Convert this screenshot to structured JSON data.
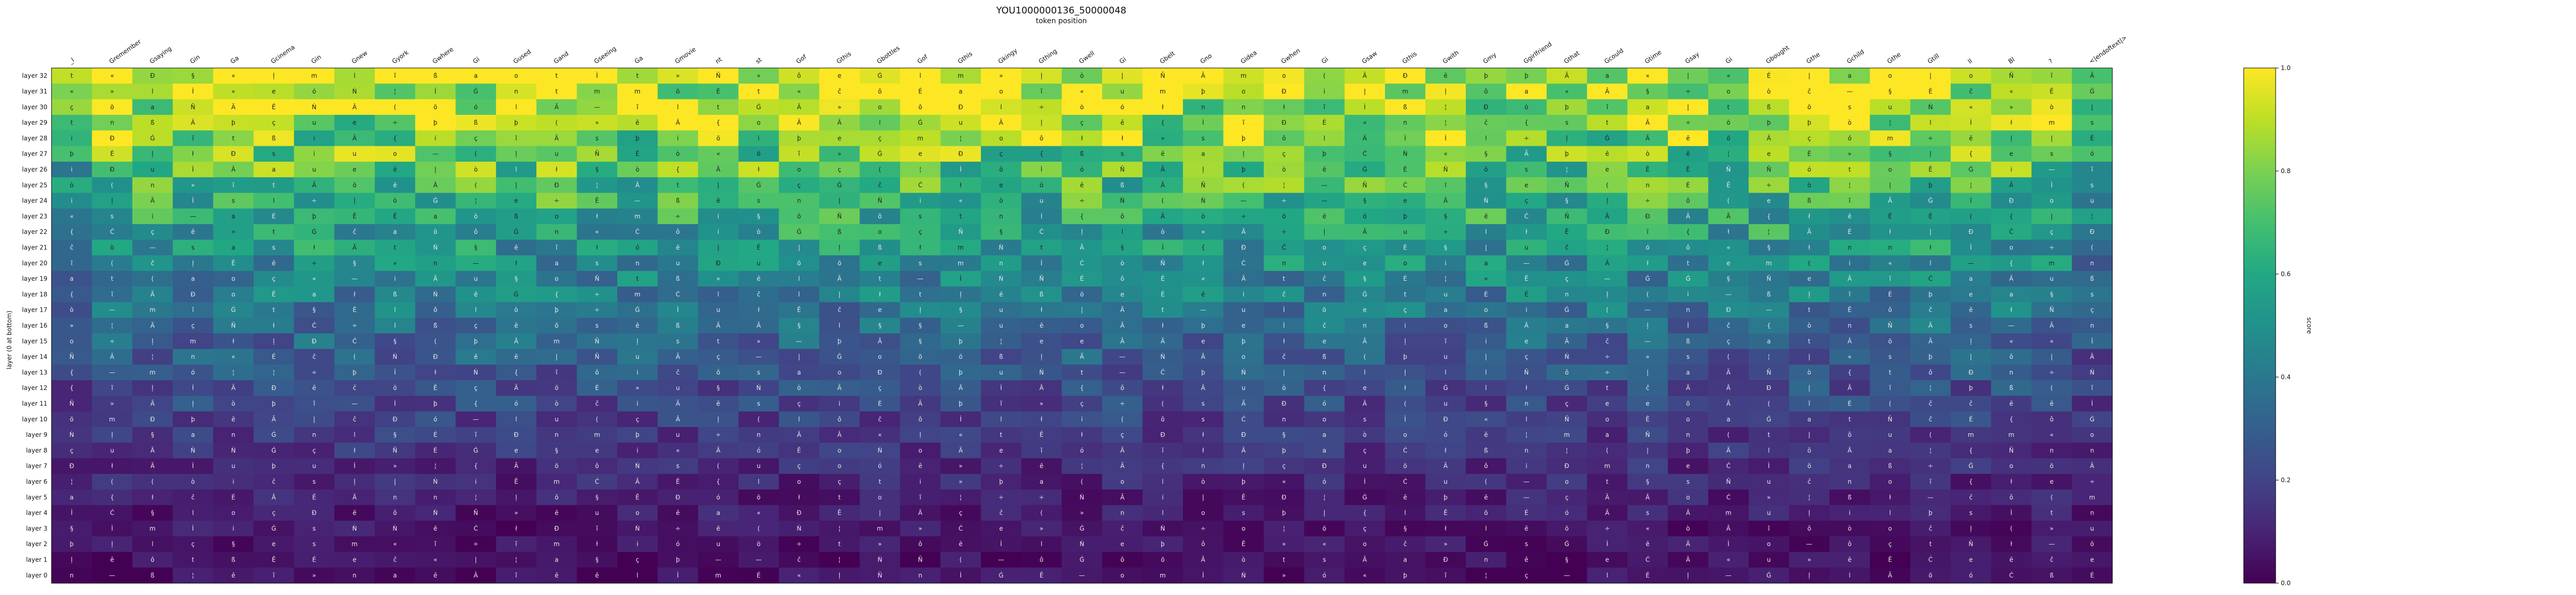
{
  "chart_data": {
    "type": "heatmap",
    "title": "YOU1000000136_50000048",
    "xlabel": "token position",
    "ylabel": "layer (0 at bottom)",
    "colorbar_label": "score",
    "colormap": "viridis",
    "color_range": [
      0.0,
      1.0
    ],
    "colorbar_ticks": [
      "0.0",
      "0.2",
      "0.4",
      "0.6",
      "0.8",
      "1.0"
    ],
    "x_tokens": [
      "_l",
      "Gremember",
      "Gsaying",
      "Gin",
      "Ga",
      "Gcinema",
      "Gin",
      "Gnew",
      "Gyork",
      "Gwhere",
      "Gi",
      "Gused",
      "Gand",
      "Gseeing",
      "Ga",
      "Gmovie",
      "nt",
      "st",
      "Gof",
      "Gthis",
      "Gbottles",
      "Gof",
      "Gthis",
      "Gkingy",
      "Gthing",
      "Gwell",
      "Gi",
      "Gbelt",
      "Gno",
      "Gidea",
      "Gwhen",
      "Gi",
      "Gsaw",
      "Gthis",
      "Gwith",
      "Gmy",
      "Ggirlfriend",
      "Gthat",
      "Gcould",
      "Gtime",
      "Gsay",
      "Gi",
      "Gbought",
      "Gthe",
      "Gchild",
      "Gthe",
      "Gtill",
      "ll",
      "Bl",
      "?",
      "<|endoftext|>"
    ],
    "y_layers": [
      "layer 32",
      "layer 31",
      "layer 30",
      "layer 29",
      "layer 28",
      "layer 27",
      "layer 26",
      "layer 25",
      "layer 24",
      "layer 23",
      "layer 22",
      "layer 21",
      "layer 20",
      "layer 19",
      "layer 18",
      "layer 17",
      "layer 16",
      "layer 15",
      "layer 14",
      "layer 13",
      "layer 12",
      "layer 11",
      "layer 10",
      "layer 9",
      "layer 8",
      "layer 7",
      "layer 6",
      "layer 5",
      "layer 4",
      "layer 3",
      "layer 2",
      "layer 1",
      "layer 0"
    ],
    "cell_glyphs": [
      "a",
      "e",
      "i",
      "o",
      "u",
      "Â",
      "Ã",
      "Ä",
      "É",
      "Ê",
      "Ì",
      "Ð",
      "Ñ",
      "ò",
      "ó",
      "ô",
      "ö",
      "ß",
      "ç",
      "t",
      "s",
      "m",
      "n",
      "l",
      "Ġ",
      "Ċ",
      "ļ",
      "ĩ",
      "—",
      "|",
      "(",
      "{",
      "¦",
      "÷",
      "þ",
      "«",
      "»",
      "ł",
      "§",
      "č",
      "ē",
      "Ń"
    ],
    "seed": 136,
    "notes": "cell colors/glyphs are visually estimated; dense per-cell text is not legible"
  }
}
